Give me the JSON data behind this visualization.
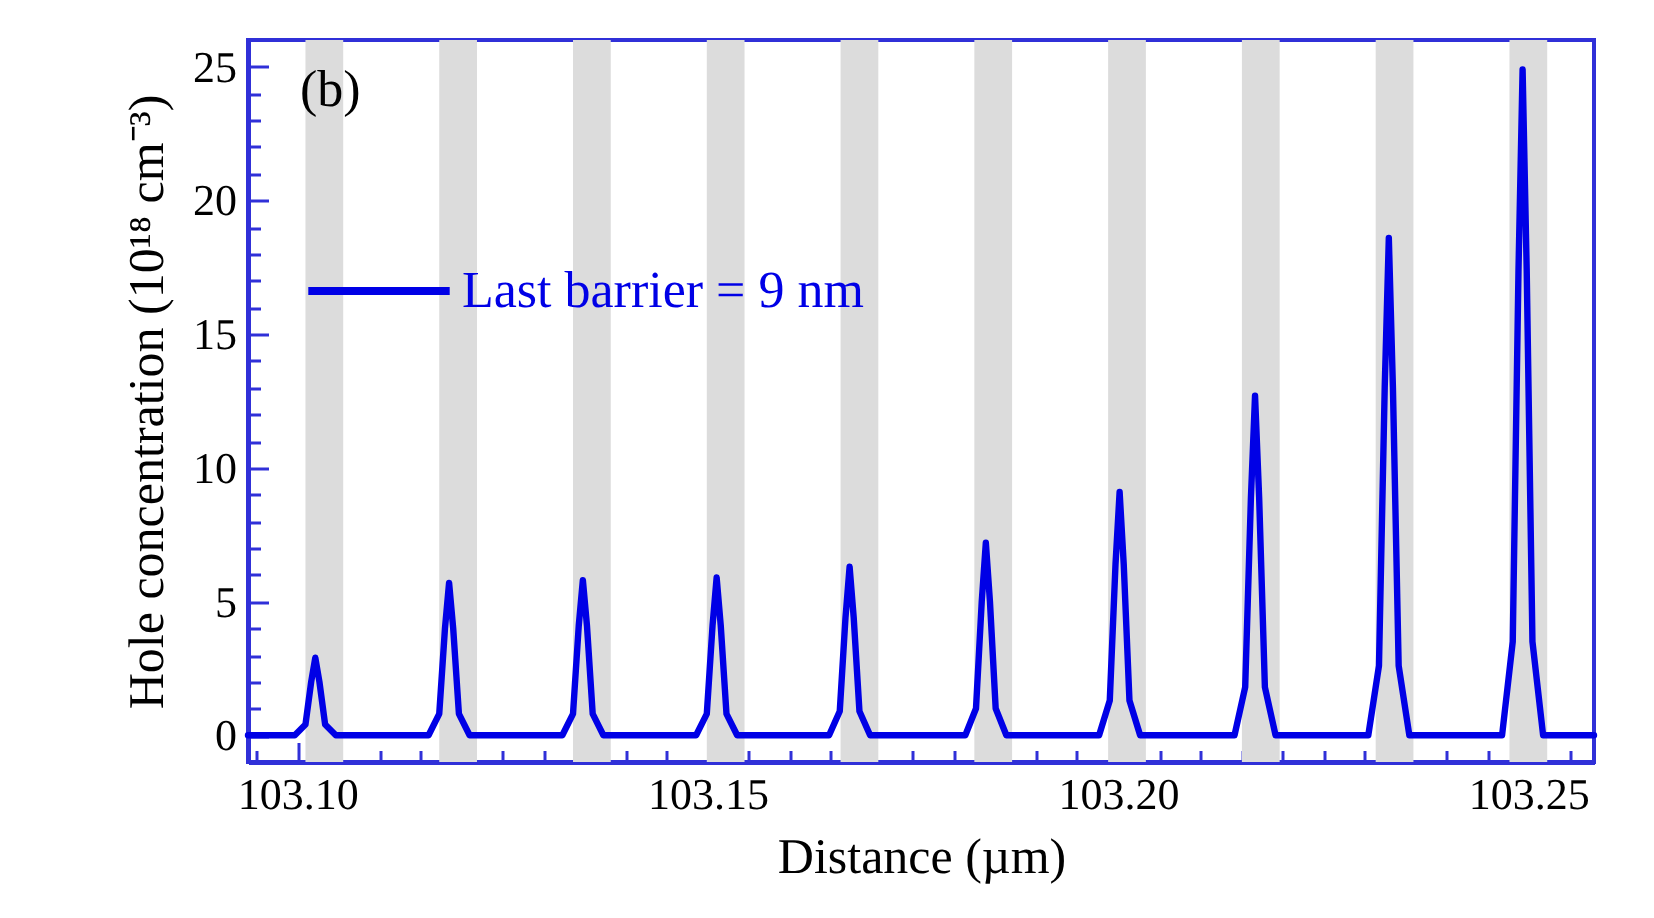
{
  "chart_data": {
    "type": "line",
    "xlabel": "Distance (µm)",
    "ylabel": "Hole concentration (10¹⁸ cm⁻³)",
    "annotations": [
      "(b)"
    ],
    "legend": "top left",
    "line_style": "solid",
    "xlim": [
      103.094,
      103.258
    ],
    "ylim": [
      -1,
      26
    ],
    "xticks": [
      {
        "value": 103.095,
        "label": null
      },
      {
        "value": 103.1,
        "label": "103.10"
      },
      {
        "value": 103.105,
        "label": null
      },
      {
        "value": 103.11,
        "label": null
      },
      {
        "value": 103.115,
        "label": null
      },
      {
        "value": 103.12,
        "label": null
      },
      {
        "value": 103.125,
        "label": null
      },
      {
        "value": 103.13,
        "label": null
      },
      {
        "value": 103.135,
        "label": null
      },
      {
        "value": 103.14,
        "label": null
      },
      {
        "value": 103.145,
        "label": null
      },
      {
        "value": 103.15,
        "label": "103.15"
      },
      {
        "value": 103.155,
        "label": null
      },
      {
        "value": 103.16,
        "label": null
      },
      {
        "value": 103.165,
        "label": null
      },
      {
        "value": 103.17,
        "label": null
      },
      {
        "value": 103.175,
        "label": null
      },
      {
        "value": 103.18,
        "label": null
      },
      {
        "value": 103.185,
        "label": null
      },
      {
        "value": 103.19,
        "label": null
      },
      {
        "value": 103.195,
        "label": null
      },
      {
        "value": 103.2,
        "label": "103.20"
      },
      {
        "value": 103.205,
        "label": null
      },
      {
        "value": 103.21,
        "label": null
      },
      {
        "value": 103.215,
        "label": null
      },
      {
        "value": 103.22,
        "label": null
      },
      {
        "value": 103.225,
        "label": null
      },
      {
        "value": 103.23,
        "label": null
      },
      {
        "value": 103.235,
        "label": null
      },
      {
        "value": 103.24,
        "label": null
      },
      {
        "value": 103.245,
        "label": null
      },
      {
        "value": 103.25,
        "label": "103.25"
      },
      {
        "value": 103.255,
        "label": null
      }
    ],
    "yticks": [
      0,
      {
        "value": 1,
        "label": null
      },
      {
        "value": 2,
        "label": null
      },
      {
        "value": 3,
        "label": null
      },
      {
        "value": 4,
        "label": null
      },
      5,
      {
        "value": 6,
        "label": null
      },
      {
        "value": 7,
        "label": null
      },
      {
        "value": 8,
        "label": null
      },
      {
        "value": 9,
        "label": null
      },
      10,
      {
        "value": 11,
        "label": null
      },
      {
        "value": 12,
        "label": null
      },
      {
        "value": 13,
        "label": null
      },
      {
        "value": 14,
        "label": null
      },
      15,
      {
        "value": 16,
        "label": null
      },
      {
        "value": 17,
        "label": null
      },
      {
        "value": 18,
        "label": null
      },
      {
        "value": 19,
        "label": null
      },
      20,
      {
        "value": 21,
        "label": null
      },
      {
        "value": 22,
        "label": null
      },
      {
        "value": 23,
        "label": null
      },
      {
        "value": 24,
        "label": null
      },
      25
    ],
    "bands": [
      {
        "axis": "x",
        "from": 103.101,
        "to": 103.1056,
        "color": "#dcdcdc"
      },
      {
        "axis": "x",
        "from": 103.1173,
        "to": 103.1219,
        "color": "#dcdcdc"
      },
      {
        "axis": "x",
        "from": 103.1336,
        "to": 103.1382,
        "color": "#dcdcdc"
      },
      {
        "axis": "x",
        "from": 103.1499,
        "to": 103.1545,
        "color": "#dcdcdc"
      },
      {
        "axis": "x",
        "from": 103.1662,
        "to": 103.1708,
        "color": "#dcdcdc"
      },
      {
        "axis": "x",
        "from": 103.1825,
        "to": 103.1871,
        "color": "#dcdcdc"
      },
      {
        "axis": "x",
        "from": 103.1988,
        "to": 103.2034,
        "color": "#dcdcdc"
      },
      {
        "axis": "x",
        "from": 103.2151,
        "to": 103.2197,
        "color": "#dcdcdc"
      },
      {
        "axis": "x",
        "from": 103.2314,
        "to": 103.236,
        "color": "#dcdcdc"
      },
      {
        "axis": "x",
        "from": 103.2477,
        "to": 103.2523,
        "color": "#dcdcdc"
      }
    ],
    "series": [
      {
        "name": "Last barrier = 9 nm",
        "color": "#0000e6",
        "x": [
          103.094,
          103.0997,
          103.101,
          103.1017,
          103.1022,
          103.1027,
          103.1034,
          103.1047,
          103.116,
          103.1173,
          103.118,
          103.1185,
          103.119,
          103.1197,
          103.121,
          103.1323,
          103.1336,
          103.1343,
          103.1348,
          103.1353,
          103.136,
          103.1373,
          103.1486,
          103.1499,
          103.1506,
          103.1511,
          103.1516,
          103.1523,
          103.1536,
          103.1648,
          103.1661,
          103.1668,
          103.1673,
          103.1678,
          103.1685,
          103.1698,
          103.1814,
          103.1827,
          103.1834,
          103.1839,
          103.1844,
          103.1851,
          103.1864,
          103.1977,
          103.199,
          103.1997,
          103.2002,
          103.2007,
          103.2014,
          103.2027,
          103.2142,
          103.2155,
          103.2162,
          103.2167,
          103.2172,
          103.2179,
          103.2192,
          103.2305,
          103.2318,
          103.2325,
          103.233,
          103.2335,
          103.2342,
          103.2355,
          103.2468,
          103.2481,
          103.2488,
          103.2493,
          103.2498,
          103.2505,
          103.2518,
          103.258
        ],
        "values": [
          0,
          0,
          0.4,
          2,
          2.9,
          2,
          0.4,
          0,
          0,
          0.8,
          4,
          5.7,
          4,
          0.8,
          0,
          0,
          0.8,
          4.1,
          5.8,
          4.1,
          0.8,
          0,
          0,
          0.8,
          4.1,
          5.9,
          4.1,
          0.8,
          0,
          0,
          0.9,
          4.4,
          6.3,
          4.4,
          0.9,
          0,
          0,
          1,
          5,
          7.2,
          5,
          1,
          0,
          0,
          1.3,
          6.4,
          9.1,
          6.4,
          1.3,
          0,
          0,
          1.8,
          8.9,
          12.7,
          8.9,
          1.8,
          0,
          0,
          2.6,
          13,
          18.6,
          13,
          2.6,
          0,
          0,
          3.5,
          17.4,
          24.9,
          17.4,
          3.5,
          0,
          0
        ]
      }
    ]
  }
}
